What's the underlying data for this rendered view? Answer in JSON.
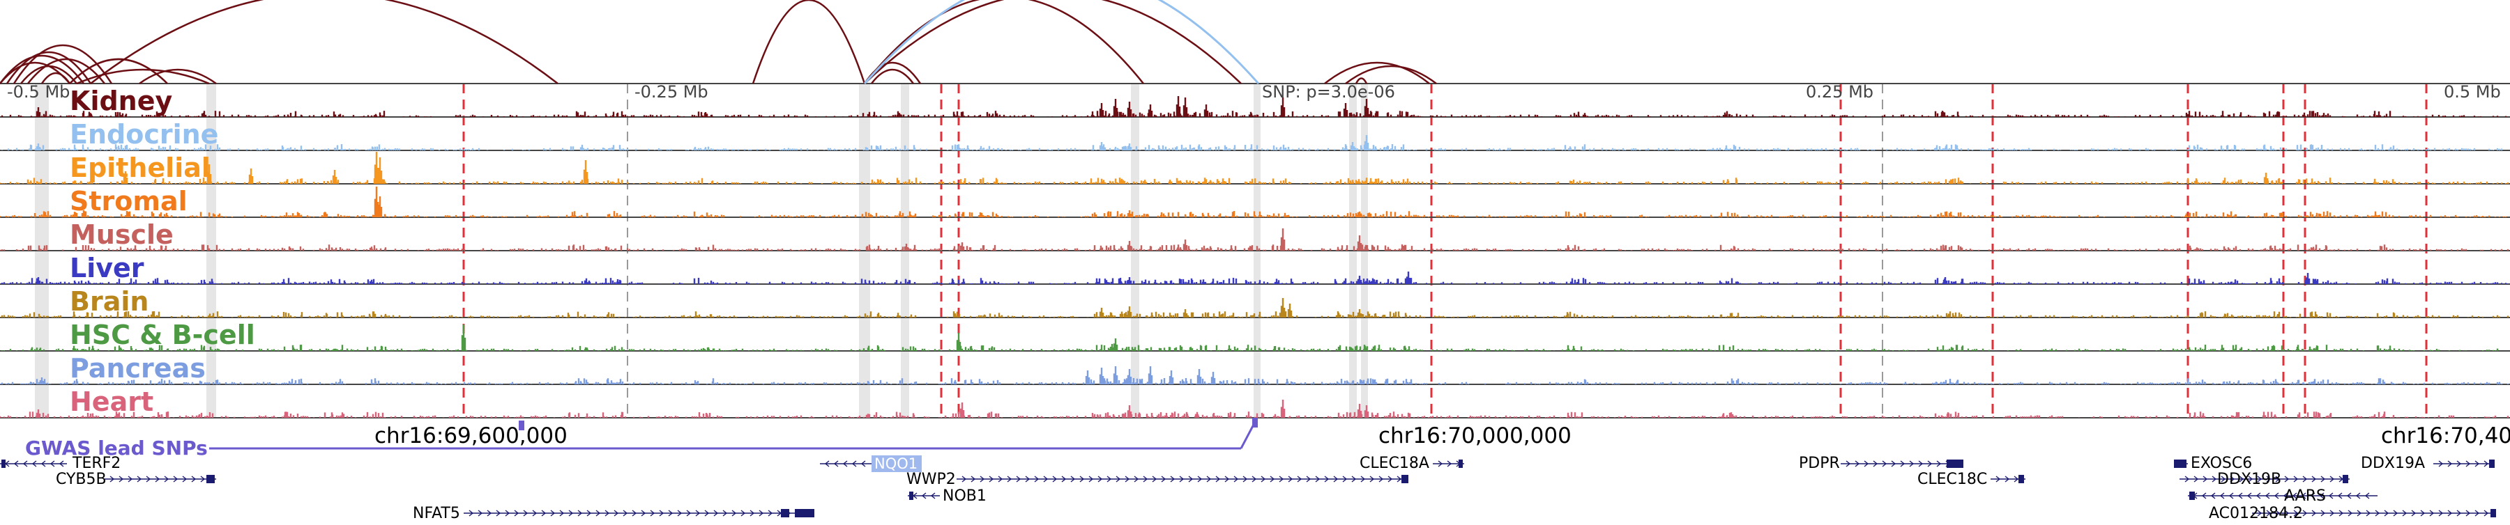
{
  "axis_labels": [
    "-0.5 Mb",
    "-0.25 Mb",
    "SNP: p=3.0e-06",
    "0.25 Mb",
    "0.5 Mb"
  ],
  "tracks": [
    {
      "name": "Kidney",
      "color": "#6b0f14"
    },
    {
      "name": "Endocrine",
      "color": "#93c0ee"
    },
    {
      "name": "Epithelial",
      "color": "#f5961e"
    },
    {
      "name": "Stromal",
      "color": "#f07a1c"
    },
    {
      "name": "Muscle",
      "color": "#c4605e"
    },
    {
      "name": "Liver",
      "color": "#3a3bc2"
    },
    {
      "name": "Brain",
      "color": "#b8861c"
    },
    {
      "name": "HSC & B-cell",
      "color": "#4e9a44"
    },
    {
      "name": "Pancreas",
      "color": "#7c9ee0"
    },
    {
      "name": "Heart",
      "color": "#d9637a"
    }
  ],
  "gwas_label": "GWAS lead SNPs",
  "chrom_labels": [
    "chr16:69,600,000",
    "chr16:70,000,000",
    "chr16:70,40"
  ],
  "genes": [
    "TERF2",
    "CYB5B",
    "NFAT5",
    "NQO1",
    "WWP2",
    "NOB1",
    "CLEC18A",
    "PDPR",
    "CLEC18C",
    "EXOSC6",
    "DDX19B",
    "AARS",
    "AC012184.2",
    "DDX19A"
  ],
  "colors": {
    "red_dash": "#e0303a",
    "link_dark": "#6b0f14",
    "link_light": "#93c0ee",
    "gwas": "#6a5acd",
    "gene": "#1a1a6e",
    "nqo1_highlight": "#9fb8ee"
  }
}
